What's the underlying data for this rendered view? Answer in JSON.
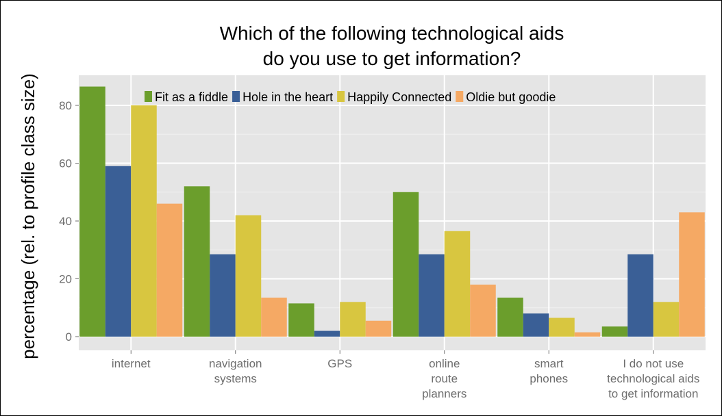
{
  "chart_data": {
    "type": "bar",
    "title": [
      "Which of the following technological aids",
      "do you use to get information?"
    ],
    "ylabel": "percentage (rel. to profile class size)",
    "xlabel": "",
    "ylim": [
      0,
      90
    ],
    "yticks": [
      "0",
      "20",
      "40",
      "60",
      "80"
    ],
    "ytick_values": [
      0,
      20,
      40,
      60,
      80
    ],
    "grid": true,
    "legend_position": "top",
    "categories": [
      [
        "internet"
      ],
      [
        "navigation",
        "systems"
      ],
      [
        "GPS"
      ],
      [
        "online",
        "route",
        "planners"
      ],
      [
        "smart",
        "phones"
      ],
      [
        "I do not use",
        "technological aids",
        "to get information"
      ]
    ],
    "series": [
      {
        "name": "Fit as a fiddle",
        "color": "#6b9e2c",
        "values": [
          86.5,
          52,
          11.5,
          50,
          13.5,
          3.5
        ]
      },
      {
        "name": "Hole in the heart",
        "color": "#3a5f96",
        "values": [
          59,
          28.5,
          2,
          28.5,
          8,
          28.5
        ]
      },
      {
        "name": "Happily Connected",
        "color": "#d8c640",
        "values": [
          80,
          42,
          12,
          36.5,
          6.5,
          12
        ]
      },
      {
        "name": "Oldie but goodie",
        "color": "#f5a964",
        "values": [
          46,
          13.5,
          5.5,
          18,
          1.5,
          43
        ]
      }
    ],
    "colors": {
      "panel_bg": "#e5e5e5",
      "grid_major": "#ffffff",
      "grid_minor": "#f0f0f0"
    }
  }
}
